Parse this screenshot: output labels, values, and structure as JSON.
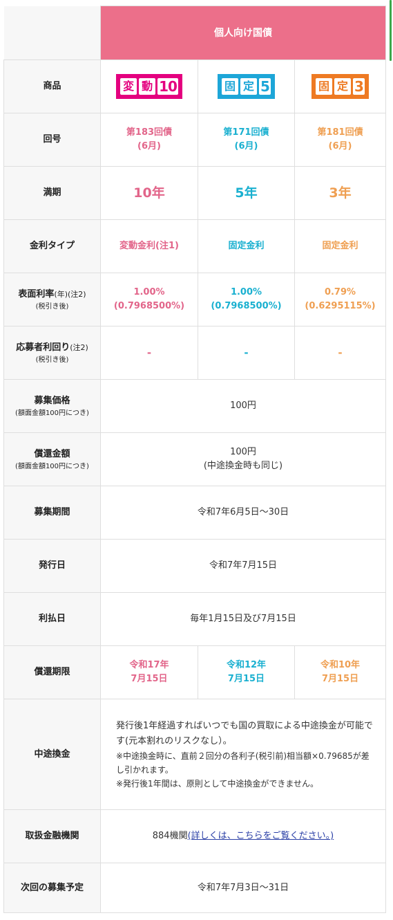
{
  "header": {
    "title": "個人向け国債"
  },
  "rows": {
    "product": {
      "label": "商品"
    },
    "issue_no": {
      "label": "回号"
    },
    "maturity": {
      "label": "満期"
    },
    "rate_type": {
      "label": "金利タイプ"
    },
    "coupon": {
      "label": "表面利率",
      "label_suffix": "(年)",
      "note": "(注2)",
      "sub": "(税引き後)"
    },
    "yield": {
      "label": "応募者利回り",
      "note": "(注2)",
      "sub": "(税引き後)"
    },
    "issue_price": {
      "label": "募集価格",
      "sub": "(額面金額100円につき)",
      "value": "100円"
    },
    "redemption": {
      "label": "償還金額",
      "sub": "(額面金額100円につき)",
      "value": "100円",
      "value2": "(中途換金時も同じ)"
    },
    "offer_period": {
      "label": "募集期間",
      "value": "令和7年6月5日～30日"
    },
    "issue_date": {
      "label": "発行日",
      "value": "令和7年7月15日"
    },
    "interest_date": {
      "label": "利払日",
      "value": "毎年1月15日及び7月15日"
    },
    "redemption_date": {
      "label": "償還期限"
    },
    "early_redemption": {
      "label": "中途換金",
      "text": "発行後1年経過すればいつでも国の買取による中途換金が可能です(元本割れのリスクなし）。",
      "note1": "※中途換金時に、直前２回分の各利子(税引前)相当額×0.79685が差し引かれます。",
      "note2": "※発行後1年間は、原則として中途換金ができません。"
    },
    "institutions": {
      "label": "取扱金融機関",
      "count": "884機関",
      "link": "(詳しくは、こちらをご覧ください。)"
    },
    "next_offer": {
      "label": "次回の募集予定",
      "value": "令和7年7月3日～31日"
    }
  },
  "products": [
    {
      "badge_chars": [
        "変",
        "動"
      ],
      "badge_num": "10",
      "color": "#e2658a",
      "issue_no": "第183回債",
      "issue_month": "(6月)",
      "maturity": "10年",
      "rate_type": "変動金利(注1)",
      "coupon": "1.00%",
      "coupon_after_tax": "(0.7968500%)",
      "yield": "-",
      "redemption_year": "令和17年",
      "redemption_day": "7月15日"
    },
    {
      "badge_chars": [
        "固",
        "定"
      ],
      "badge_num": "5",
      "color": "#1ab0d0",
      "issue_no": "第171回債",
      "issue_month": "(6月)",
      "maturity": "5年",
      "rate_type": "固定金利",
      "coupon": "1.00%",
      "coupon_after_tax": "(0.7968500%)",
      "yield": "-",
      "redemption_year": "令和12年",
      "redemption_day": "7月15日"
    },
    {
      "badge_chars": [
        "固",
        "定"
      ],
      "badge_num": "3",
      "color": "#ef9f52",
      "issue_no": "第181回債",
      "issue_month": "(6月)",
      "maturity": "3年",
      "rate_type": "固定金利",
      "coupon": "0.79%",
      "coupon_after_tax": "(0.6295115%)",
      "yield": "-",
      "redemption_year": "令和10年",
      "redemption_day": "7月15日"
    }
  ]
}
